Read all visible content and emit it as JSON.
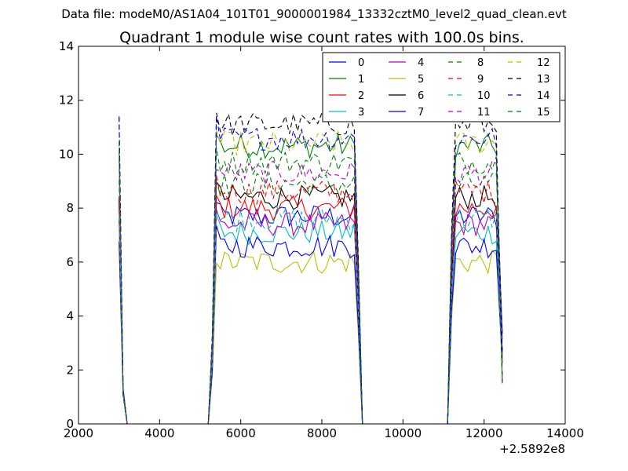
{
  "figure": {
    "suptitle": "Data file: modeM0/AS1A04_101T01_9000001984_13332cztM0_level2_quad_clean.evt",
    "title": "Quadrant 1 module wise count rates with 100.0s bins."
  },
  "chart_data": {
    "type": "line",
    "title": "Quadrant 1 module wise count rates with 100.0s bins.",
    "xlabel": "",
    "ylabel": "",
    "x_offset_label": "+2.5892e8",
    "xlim": [
      2000,
      14000
    ],
    "ylim": [
      0,
      14
    ],
    "xticks": [
      2000,
      4000,
      6000,
      8000,
      10000,
      12000,
      14000
    ],
    "yticks": [
      0,
      2,
      4,
      6,
      8,
      10,
      12,
      14
    ],
    "grid": false,
    "legend_position": "upper-right",
    "legend_columns": 4,
    "segments": [
      {
        "start": 3000,
        "end": 3200,
        "step": 100
      },
      {
        "start": 5200,
        "end": 9000,
        "step": 100
      },
      {
        "start": 11100,
        "end": 12450,
        "step": 100
      }
    ],
    "gaps_at_zero": true,
    "series": [
      {
        "name": "0",
        "color": "#0000ff",
        "dash": "solid",
        "level": 7.7
      },
      {
        "name": "1",
        "color": "#008000",
        "dash": "solid",
        "level": 10.3
      },
      {
        "name": "2",
        "color": "#ff0000",
        "dash": "solid",
        "level": 8.0
      },
      {
        "name": "3",
        "color": "#00bfbf",
        "dash": "solid",
        "level": 7.1
      },
      {
        "name": "4",
        "color": "#bf00bf",
        "dash": "solid",
        "level": 7.4
      },
      {
        "name": "5",
        "color": "#bfbf00",
        "dash": "solid",
        "level": 6.0
      },
      {
        "name": "6",
        "color": "#000000",
        "dash": "solid",
        "level": 8.4
      },
      {
        "name": "7",
        "color": "#0000ff",
        "dash": "solid",
        "level": 6.6
      },
      {
        "name": "8",
        "color": "#008000",
        "dash": "dashed",
        "level": 8.9
      },
      {
        "name": "9",
        "color": "#ff0000",
        "dash": "dashed",
        "level": 8.6
      },
      {
        "name": "10",
        "color": "#00bfbf",
        "dash": "dashed",
        "level": 7.6
      },
      {
        "name": "11",
        "color": "#bf00bf",
        "dash": "dashed",
        "level": 9.3
      },
      {
        "name": "12",
        "color": "#bfbf00",
        "dash": "dashed",
        "level": 10.4
      },
      {
        "name": "13",
        "color": "#000000",
        "dash": "dashed",
        "level": 11.1
      },
      {
        "name": "14",
        "color": "#0000ff",
        "dash": "dashed",
        "level": 10.6
      },
      {
        "name": "15",
        "color": "#008000",
        "dash": "dashed",
        "level": 9.7
      }
    ]
  }
}
